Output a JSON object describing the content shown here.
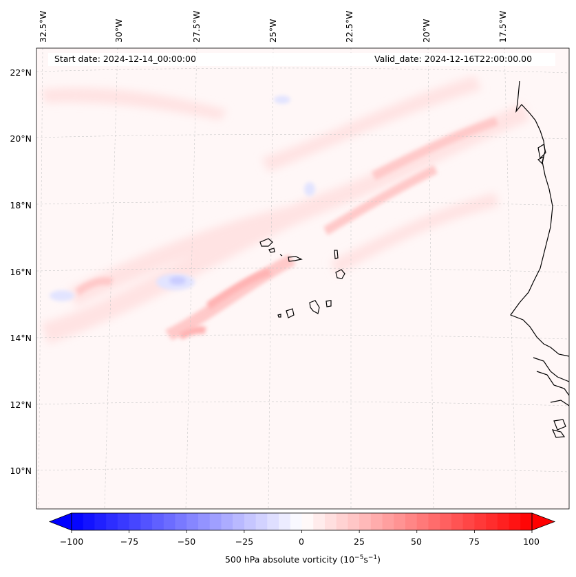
{
  "header": {
    "start_date": "Start date: 2024-12-14_00:00:00",
    "valid_date": "Valid_date: 2024-12-16T22:00:00.00"
  },
  "map": {
    "longitude_labels": [
      "32.5°W",
      "30°W",
      "27.5°W",
      "25°W",
      "22.5°W",
      "20°W",
      "17.5°W"
    ],
    "latitude_labels": [
      "22°N",
      "20°N",
      "18°N",
      "16°N",
      "14°N",
      "12°N",
      "10°N"
    ],
    "gridlines": true,
    "coastline_color": "#000000"
  },
  "colorbar": {
    "label_prefix": "500 hPa absolute vorticity (10",
    "label_exp1": "−5",
    "label_mid": "s",
    "label_exp2": "−1",
    "label_suffix": ")",
    "ticks": [
      "−100",
      "−75",
      "−50",
      "−25",
      "0",
      "25",
      "50",
      "75",
      "100"
    ],
    "range": [
      -100,
      100
    ],
    "extend": "both",
    "low_color": "#0000ff",
    "mid_color": "#ffffff",
    "high_color": "#ff0000"
  }
}
